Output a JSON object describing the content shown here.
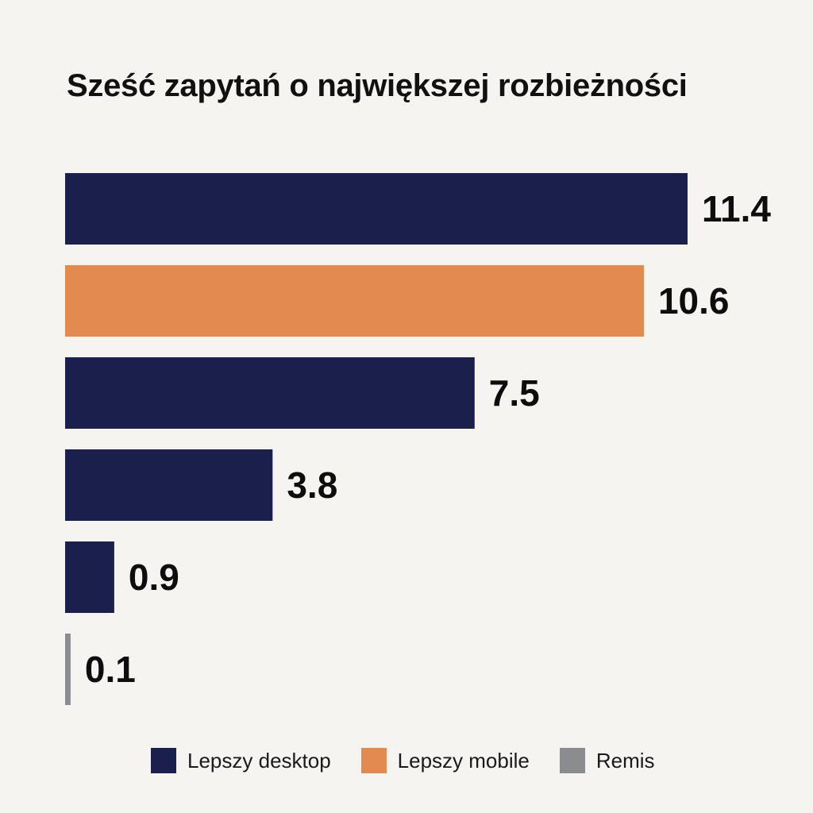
{
  "chart_data": {
    "type": "bar",
    "orientation": "horizontal",
    "title": "Sześć zapytań o największej rozbieżności",
    "values": [
      11.4,
      10.6,
      7.5,
      3.8,
      0.9,
      0.1
    ],
    "value_labels": [
      "11.4",
      "10.6",
      "7.5",
      "3.8",
      "0.9",
      "0.1"
    ],
    "bar_group": [
      "desktop",
      "mobile",
      "desktop",
      "desktop",
      "desktop",
      "tie"
    ],
    "xlim": [
      0,
      11.4
    ],
    "grid": false,
    "legend": {
      "placement": "bottom",
      "items": [
        {
          "key": "desktop",
          "label": "Lepszy desktop",
          "color": "#1b1f4b"
        },
        {
          "key": "mobile",
          "label": "Lepszy mobile",
          "color": "#e38a50"
        },
        {
          "key": "tie",
          "label": "Remis",
          "color": "#8a8c90"
        }
      ]
    },
    "colors": {
      "desktop": "#1b1f4b",
      "mobile": "#e38a50",
      "tie": "#8a8c90"
    }
  }
}
